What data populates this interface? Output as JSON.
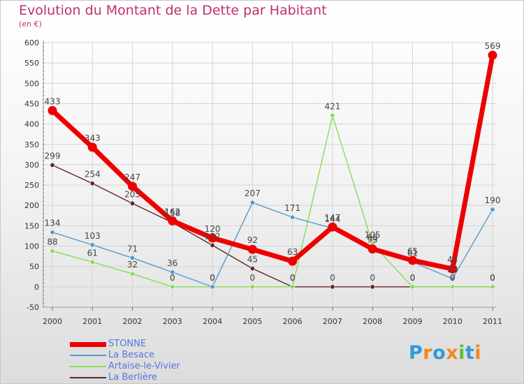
{
  "title": "Evolution du Montant de la Dette par Habitant",
  "unit": "(en €)",
  "logo": {
    "text": "Proxiti",
    "letters": [
      "P",
      "r",
      "o",
      "x",
      "i",
      "t",
      "i"
    ],
    "colors": [
      "#3399dd",
      "#ee8822",
      "#3399dd",
      "#ee8822",
      "#66bb33",
      "#3399dd",
      "#ee8822"
    ]
  },
  "chart_data": {
    "type": "line",
    "x": [
      "2000",
      "2001",
      "2002",
      "2003",
      "2004",
      "2005",
      "2006",
      "2007",
      "2008",
      "2009",
      "2010",
      "2011"
    ],
    "ylim": [
      -50,
      600
    ],
    "yticks": [
      "-50",
      "0",
      "50",
      "100",
      "150",
      "200",
      "250",
      "300",
      "350",
      "400",
      "450",
      "500",
      "550",
      "600"
    ],
    "grid": true,
    "legend": "bottom-left",
    "series": [
      {
        "name": "STONNE",
        "color": "#ee0000",
        "values": [
          433,
          343,
          247,
          162,
          120,
          92,
          63,
          147,
          93,
          65,
          44,
          569
        ]
      },
      {
        "name": "La Besace",
        "color": "#5599cc",
        "values": [
          134,
          103,
          71,
          36,
          0,
          207,
          171,
          144,
          98,
          61,
          20,
          190
        ]
      },
      {
        "name": "Artaise-le-Vivier",
        "color": "#88dd55",
        "values": [
          88,
          61,
          32,
          0,
          0,
          0,
          0,
          421,
          105,
          0,
          0,
          0
        ]
      },
      {
        "name": "La Berlière",
        "color": "#662222",
        "values": [
          299,
          254,
          205,
          158,
          102,
          45,
          0,
          0,
          0,
          0,
          0,
          0
        ]
      }
    ]
  }
}
